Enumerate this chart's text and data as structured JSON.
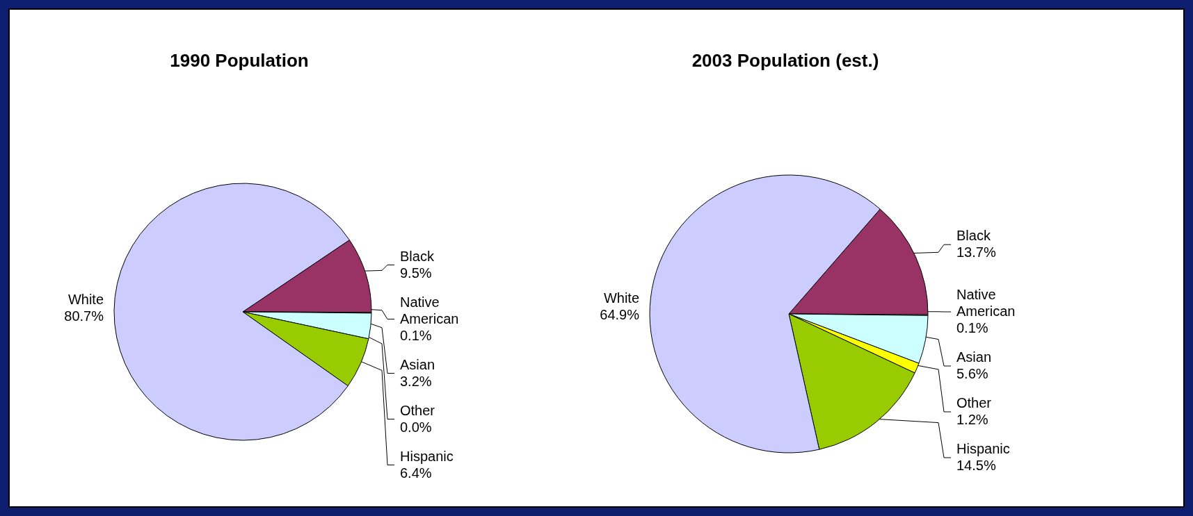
{
  "chart_data": [
    {
      "type": "pie",
      "title": "1990 Population",
      "categories": [
        "Black",
        "Native American",
        "Asian",
        "Other",
        "Hispanic",
        "White"
      ],
      "values": [
        9.5,
        0.1,
        3.2,
        0.0,
        6.4,
        80.7
      ],
      "value_labels": [
        "9.5%",
        "0.1%",
        "3.2%",
        "0.0%",
        "6.4%",
        "80.7%"
      ],
      "colors": [
        "#993366",
        "#ffffcc",
        "#ccffff",
        "#ffff00",
        "#99cc00",
        "#ccccff"
      ]
    },
    {
      "type": "pie",
      "title": "2003 Population (est.)",
      "categories": [
        "Black",
        "Native American",
        "Asian",
        "Other",
        "Hispanic",
        "White"
      ],
      "values": [
        13.7,
        0.1,
        5.6,
        1.2,
        14.5,
        64.9
      ],
      "value_labels": [
        "13.7%",
        "0.1%",
        "5.6%",
        "1.2%",
        "14.5%",
        "64.9%"
      ],
      "colors": [
        "#993366",
        "#ffffcc",
        "#ccffff",
        "#ffff00",
        "#99cc00",
        "#ccccff"
      ]
    }
  ]
}
